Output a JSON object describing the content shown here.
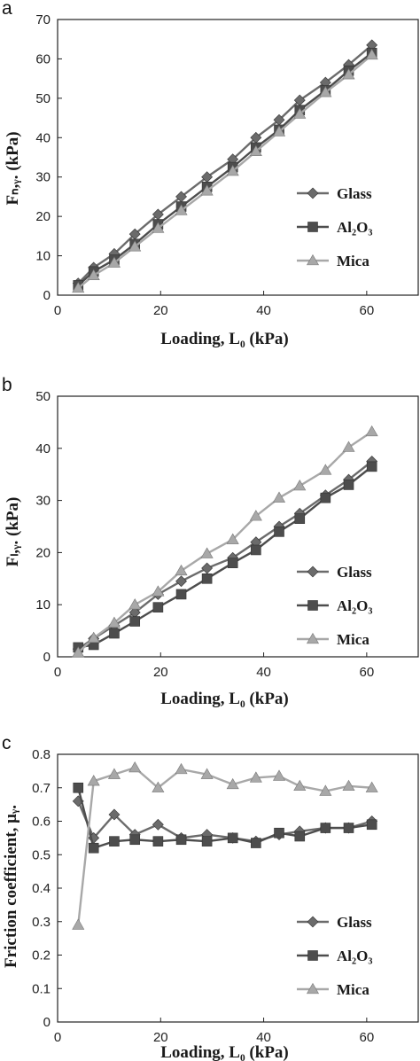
{
  "colors": {
    "glass": "#6b6b6b",
    "al2o3": "#4d4d4d",
    "mica": "#a8a8a8",
    "axis": "#222222"
  },
  "chart_data": [
    {
      "type": "line",
      "panel": "a",
      "xlabel": "Loading, L₀ (kPa)",
      "ylabel": "Fₙ,ᵧ. (kPa)",
      "xlim": [
        0,
        70
      ],
      "ylim": [
        0,
        70
      ],
      "xticks": [
        "0",
        "20",
        "40",
        "60"
      ],
      "yticks": [
        "0",
        "10",
        "20",
        "30",
        "40",
        "50",
        "60",
        "70"
      ],
      "legend_position": "center-right",
      "series": [
        {
          "name": "Glass",
          "marker": "diamond",
          "x": [
            4,
            7,
            11,
            15,
            19.5,
            24,
            29,
            34,
            38.5,
            43,
            47,
            52,
            56.5,
            61
          ],
          "y": [
            3,
            7,
            10.5,
            15.5,
            20.5,
            25,
            30,
            34.5,
            40,
            44.5,
            49.5,
            54,
            58.5,
            63.5
          ]
        },
        {
          "name": "Al₂O₃",
          "marker": "square",
          "x": [
            4,
            7,
            11,
            15,
            19.5,
            24,
            29,
            34,
            38.5,
            43,
            47,
            52,
            56.5,
            61
          ],
          "y": [
            2.5,
            6,
            9,
            13,
            18,
            22.5,
            27.5,
            32.5,
            37.5,
            42,
            47,
            52,
            57,
            61.5
          ]
        },
        {
          "name": "Mica",
          "marker": "triangle",
          "x": [
            4,
            7,
            11,
            15,
            19.5,
            24,
            29,
            34,
            38.5,
            43,
            47,
            52,
            56.5,
            61
          ],
          "y": [
            1.8,
            5,
            8.2,
            12.3,
            17,
            21.5,
            26.5,
            31.5,
            36.5,
            41.5,
            46,
            51.5,
            56,
            61
          ]
        }
      ]
    },
    {
      "type": "line",
      "panel": "b",
      "xlabel": "Loading, L₀ (kPa)",
      "ylabel": "Fₗ,ᵧ. (kPa)",
      "xlim": [
        0,
        70
      ],
      "ylim": [
        0,
        50
      ],
      "xticks": [
        "0",
        "20",
        "40",
        "60"
      ],
      "yticks": [
        "0",
        "10",
        "20",
        "30",
        "40",
        "50"
      ],
      "legend_position": "bottom-right",
      "series": [
        {
          "name": "Glass",
          "marker": "diamond",
          "x": [
            4,
            7,
            11,
            15,
            19.5,
            24,
            29,
            34,
            38.5,
            43,
            47,
            52,
            56.5,
            61
          ],
          "y": [
            1.5,
            3.5,
            6,
            8.5,
            12,
            14.5,
            17,
            19,
            22,
            25,
            27.5,
            31,
            34,
            37.5
          ]
        },
        {
          "name": "Al₂O₃",
          "marker": "square",
          "x": [
            4,
            7,
            11,
            15,
            19.5,
            24,
            29,
            34,
            38.5,
            43,
            47,
            52,
            56.5,
            61
          ],
          "y": [
            1.8,
            2.3,
            4.5,
            6.8,
            9.5,
            12,
            15,
            18,
            20.5,
            24,
            26.5,
            30.5,
            33,
            36.5
          ]
        },
        {
          "name": "Mica",
          "marker": "triangle",
          "x": [
            4,
            7,
            11,
            15,
            19.5,
            24,
            29,
            34,
            38.5,
            43,
            47,
            52,
            56.5,
            61
          ],
          "y": [
            0.8,
            3.6,
            6.5,
            10,
            12.5,
            16.5,
            19.8,
            22.5,
            27,
            30.5,
            32.8,
            35.8,
            40.2,
            43.2
          ]
        }
      ]
    },
    {
      "type": "line",
      "panel": "c",
      "xlabel": "Loading, L₀ (kPa)",
      "ylabel": "Friction coefficient, μᵧ.",
      "xlim": [
        0,
        70
      ],
      "ylim": [
        0,
        0.8
      ],
      "xticks": [
        "0",
        "20",
        "40",
        "60"
      ],
      "yticks": [
        "0",
        "0.1",
        "0.2",
        "0.3",
        "0.4",
        "0.5",
        "0.6",
        "0.7",
        "0.8"
      ],
      "legend_position": "bottom-right",
      "series": [
        {
          "name": "Glass",
          "marker": "diamond",
          "x": [
            4,
            7,
            11,
            15,
            19.5,
            24,
            29,
            34,
            38.5,
            43,
            47,
            52,
            56.5,
            61
          ],
          "y": [
            0.66,
            0.55,
            0.62,
            0.56,
            0.59,
            0.55,
            0.56,
            0.55,
            0.54,
            0.56,
            0.57,
            0.58,
            0.58,
            0.6
          ]
        },
        {
          "name": "Al₂O₃",
          "marker": "square",
          "x": [
            4,
            7,
            11,
            15,
            19.5,
            24,
            29,
            34,
            38.5,
            43,
            47,
            52,
            56.5,
            61
          ],
          "y": [
            0.7,
            0.52,
            0.54,
            0.545,
            0.54,
            0.545,
            0.54,
            0.55,
            0.535,
            0.565,
            0.555,
            0.58,
            0.58,
            0.59
          ]
        },
        {
          "name": "Mica",
          "marker": "triangle",
          "x": [
            4,
            7,
            11,
            15,
            19.5,
            24,
            29,
            34,
            38.5,
            43,
            47,
            52,
            56.5,
            61
          ],
          "y": [
            0.29,
            0.72,
            0.74,
            0.76,
            0.7,
            0.755,
            0.74,
            0.71,
            0.73,
            0.735,
            0.705,
            0.69,
            0.705,
            0.7
          ]
        }
      ]
    }
  ]
}
